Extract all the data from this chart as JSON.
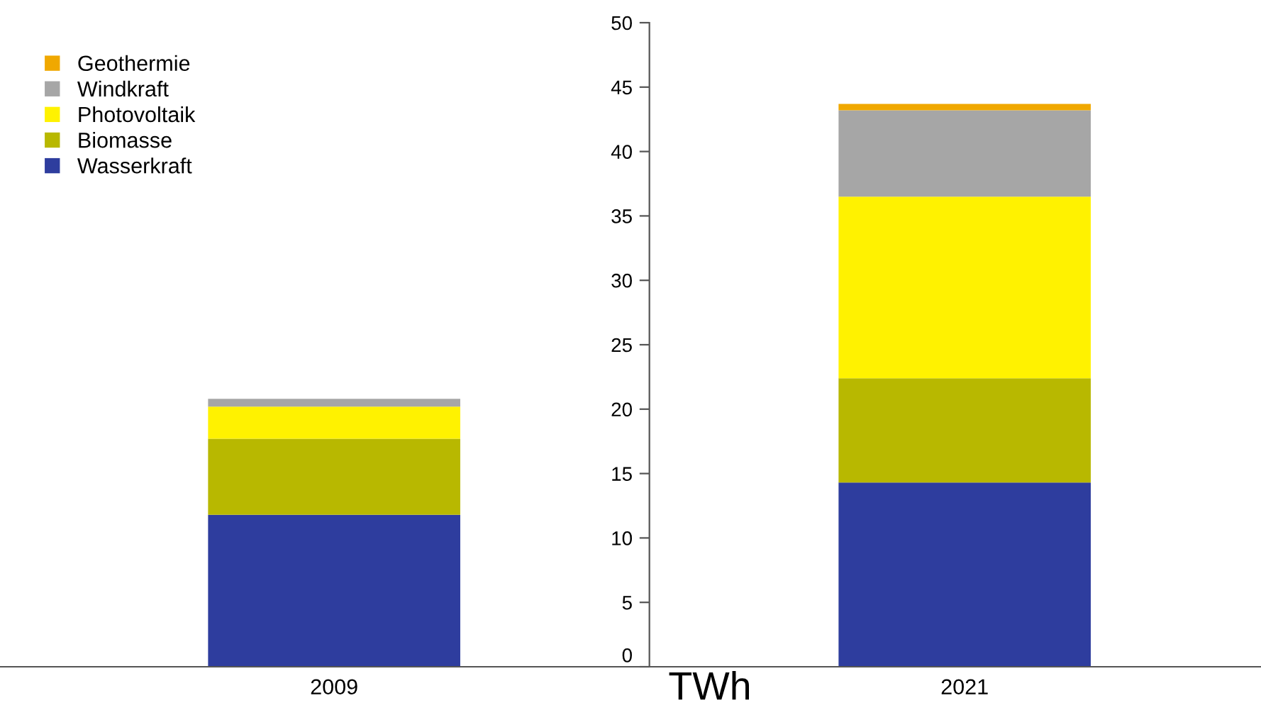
{
  "chart_data": {
    "type": "bar",
    "stacked": true,
    "annotations": [
      "TWh"
    ],
    "categories": [
      "2009",
      "2021"
    ],
    "series": [
      {
        "name": "Wasserkraft",
        "color": "#2e3d9e",
        "values": [
          11.8,
          14.3
        ]
      },
      {
        "name": "Biomasse",
        "color": "#b8b800",
        "values": [
          5.9,
          8.1
        ]
      },
      {
        "name": "Photovoltaik",
        "color": "#fff200",
        "values": [
          2.5,
          14.1
        ]
      },
      {
        "name": "Windkraft",
        "color": "#a6a6a6",
        "values": [
          0.6,
          6.7
        ]
      },
      {
        "name": "Geothermie",
        "color": "#f0a800",
        "values": [
          0,
          0.5
        ]
      }
    ],
    "ylim": [
      0,
      50
    ],
    "yticks": [
      0,
      5,
      10,
      15,
      20,
      25,
      30,
      35,
      40,
      45,
      50
    ],
    "grid": false,
    "legend": "top left"
  }
}
